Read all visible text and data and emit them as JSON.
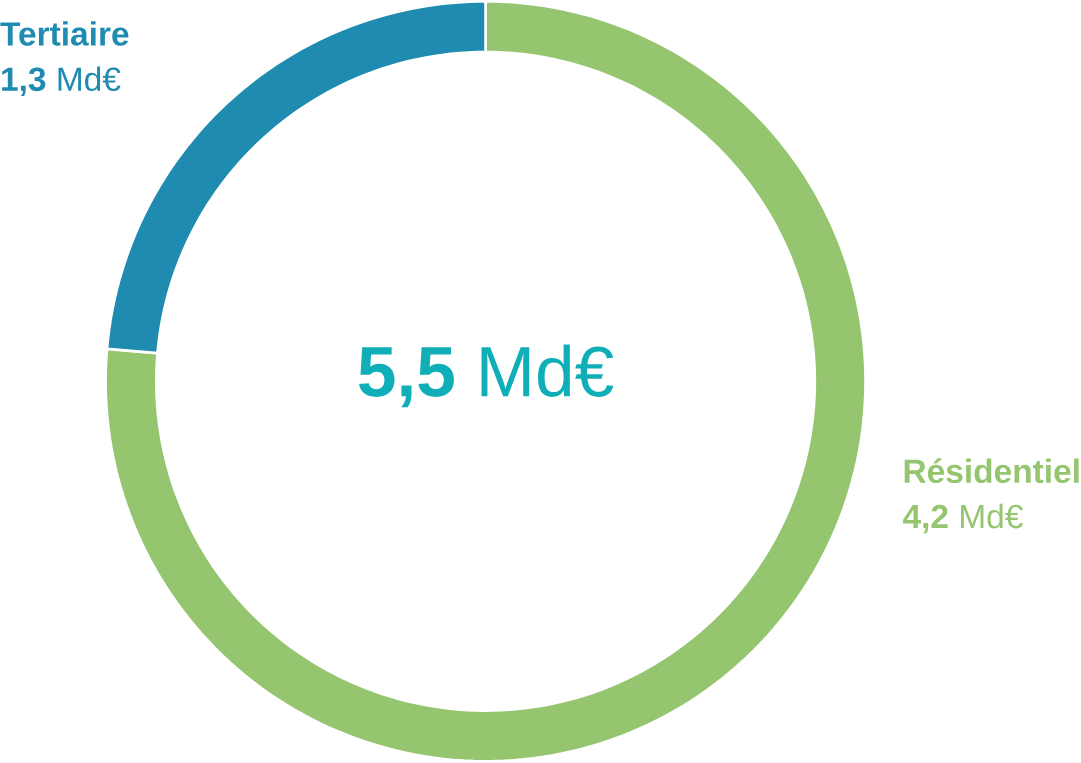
{
  "chart_data": {
    "type": "donut",
    "categories": [
      "Résidentiel",
      "Tertiaire"
    ],
    "values": [
      4.2,
      1.3
    ],
    "colors": [
      "#95c56e",
      "#1f8bb1"
    ],
    "value_labels": [
      "**4,2** Md€",
      "**1,3** Md€"
    ],
    "annotations": [
      "**5,5** Md€"
    ]
  }
}
